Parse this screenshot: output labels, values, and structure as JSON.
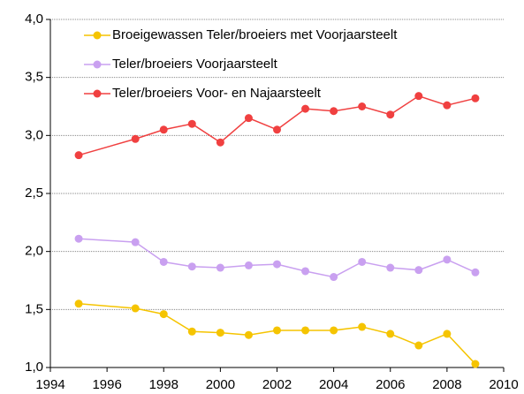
{
  "chart_data": {
    "type": "line",
    "x": [
      1995,
      1997,
      1998,
      1999,
      2000,
      2001,
      2002,
      2003,
      2004,
      2005,
      2006,
      2007,
      2008,
      2009
    ],
    "series": [
      {
        "name": "Broeigewassen Teler/broeiers met Voorjaarsteelt",
        "color": "#f5c400",
        "values": [
          1.55,
          1.51,
          1.46,
          1.31,
          1.3,
          1.28,
          1.32,
          1.32,
          1.32,
          1.35,
          1.29,
          1.19,
          1.29,
          1.03
        ]
      },
      {
        "name": "Teler/broeiers Voorjaarsteelt",
        "color": "#c9a0f0",
        "values": [
          2.11,
          2.08,
          1.91,
          1.87,
          1.86,
          1.88,
          1.89,
          1.83,
          1.78,
          1.91,
          1.86,
          1.84,
          1.93,
          1.82
        ]
      },
      {
        "name": "Teler/broeiers Voor- en Najaarsteelt",
        "color": "#f04040",
        "values": [
          2.83,
          2.97,
          3.05,
          3.1,
          2.94,
          3.15,
          3.05,
          3.23,
          3.21,
          3.25,
          3.18,
          3.34,
          3.26,
          3.32
        ]
      }
    ],
    "xlim": [
      1994,
      2010
    ],
    "xticks": [
      1994,
      1996,
      1998,
      2000,
      2002,
      2004,
      2006,
      2008,
      2010
    ],
    "ylim": [
      1.0,
      4.0
    ],
    "yticks": [
      {
        "value": 1.0,
        "label": "1,0"
      },
      {
        "value": 1.5,
        "label": "1,5"
      },
      {
        "value": 2.0,
        "label": "2,0"
      },
      {
        "value": 2.5,
        "label": "2,5"
      },
      {
        "value": 3.0,
        "label": "3,0"
      },
      {
        "value": 3.5,
        "label": "3,5"
      },
      {
        "value": 4.0,
        "label": "4,0"
      }
    ],
    "grid": true,
    "legend": "upper left"
  }
}
